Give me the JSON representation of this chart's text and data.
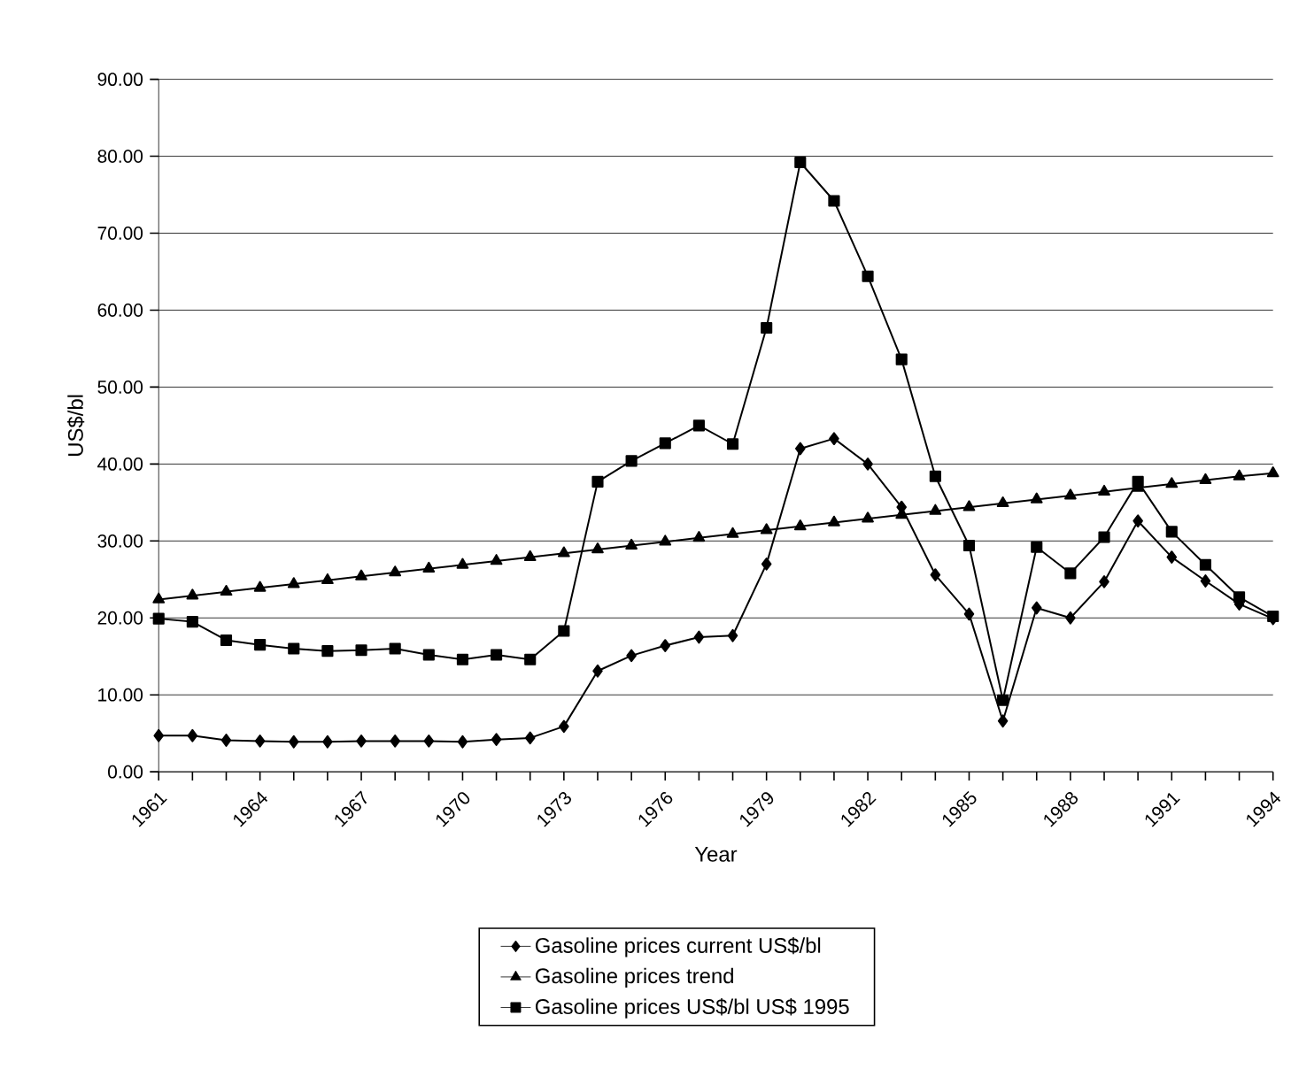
{
  "chart_data": {
    "type": "line",
    "xlabel": "Year",
    "ylabel": "US$/bl",
    "x": [
      1961,
      1962,
      1963,
      1964,
      1965,
      1966,
      1967,
      1968,
      1969,
      1970,
      1971,
      1972,
      1973,
      1974,
      1975,
      1976,
      1977,
      1978,
      1979,
      1980,
      1981,
      1982,
      1983,
      1984,
      1985,
      1986,
      1987,
      1988,
      1989,
      1990,
      1991,
      1992,
      1993,
      1994
    ],
    "series": [
      {
        "name": "Gasoline prices current US$/bl",
        "color": "#000000",
        "marker": "diamond",
        "values": [
          4.7,
          4.7,
          4.1,
          4.0,
          3.9,
          3.9,
          4.0,
          4.0,
          4.0,
          3.9,
          4.2,
          4.4,
          5.9,
          13.1,
          15.1,
          16.4,
          17.5,
          17.7,
          27.0,
          42.0,
          43.3,
          40.0,
          34.4,
          25.6,
          20.5,
          6.6,
          21.3,
          20.0,
          24.7,
          32.6,
          27.9,
          24.8,
          21.8,
          19.9
        ]
      },
      {
        "name": "Gasoline prices trend",
        "color": "#000000",
        "marker": "triangle",
        "values": [
          22.4,
          22.9,
          23.4,
          23.9,
          24.4,
          24.9,
          25.4,
          25.9,
          26.4,
          26.9,
          27.4,
          27.9,
          28.4,
          28.9,
          29.4,
          29.9,
          30.4,
          30.9,
          31.4,
          31.9,
          32.4,
          32.9,
          33.4,
          33.9,
          34.4,
          34.9,
          35.4,
          35.9,
          36.4,
          36.9,
          37.4,
          37.9,
          38.4,
          38.8
        ]
      },
      {
        "name": "Gasoline prices US$/bl US$ 1995",
        "color": "#000000",
        "marker": "square",
        "values": [
          19.9,
          19.5,
          17.1,
          16.5,
          16.0,
          15.7,
          15.8,
          16.0,
          15.2,
          14.6,
          15.2,
          14.6,
          18.3,
          37.7,
          40.4,
          42.7,
          45.0,
          42.6,
          57.7,
          79.2,
          74.2,
          64.4,
          53.6,
          38.4,
          29.4,
          9.3,
          29.2,
          25.8,
          30.5,
          37.7,
          31.2,
          26.9,
          22.7,
          20.2
        ]
      }
    ],
    "xlim": [
      1961,
      1994
    ],
    "xticks": [
      1961,
      {
        "value": 1962,
        "label": null
      },
      {
        "value": 1963,
        "label": null
      },
      1964,
      {
        "value": 1965,
        "label": null
      },
      {
        "value": 1966,
        "label": null
      },
      1967,
      {
        "value": 1968,
        "label": null
      },
      {
        "value": 1969,
        "label": null
      },
      1970,
      {
        "value": 1971,
        "label": null
      },
      {
        "value": 1972,
        "label": null
      },
      1973,
      {
        "value": 1974,
        "label": null
      },
      {
        "value": 1975,
        "label": null
      },
      1976,
      {
        "value": 1977,
        "label": null
      },
      {
        "value": 1978,
        "label": null
      },
      1979,
      {
        "value": 1980,
        "label": null
      },
      {
        "value": 1981,
        "label": null
      },
      1982,
      {
        "value": 1983,
        "label": null
      },
      {
        "value": 1984,
        "label": null
      },
      1985,
      {
        "value": 1986,
        "label": null
      },
      {
        "value": 1987,
        "label": null
      },
      1988,
      {
        "value": 1989,
        "label": null
      },
      {
        "value": 1990,
        "label": null
      },
      1991,
      {
        "value": 1992,
        "label": null
      },
      {
        "value": 1993,
        "label": null
      },
      1994
    ],
    "ylim": [
      0,
      90
    ],
    "yticks": [
      {
        "value": 0,
        "label": "0.00"
      },
      {
        "value": 10,
        "label": "10.00"
      },
      {
        "value": 20,
        "label": "20.00"
      },
      {
        "value": 30,
        "label": "30.00"
      },
      {
        "value": 40,
        "label": "40.00"
      },
      {
        "value": 50,
        "label": "50.00"
      },
      {
        "value": 60,
        "label": "60.00"
      },
      {
        "value": 70,
        "label": "70.00"
      },
      {
        "value": 80,
        "label": "80.00"
      },
      {
        "value": 90,
        "label": "90.00"
      }
    ],
    "grid": "y",
    "legend": "bottom",
    "line_style": "solid"
  }
}
